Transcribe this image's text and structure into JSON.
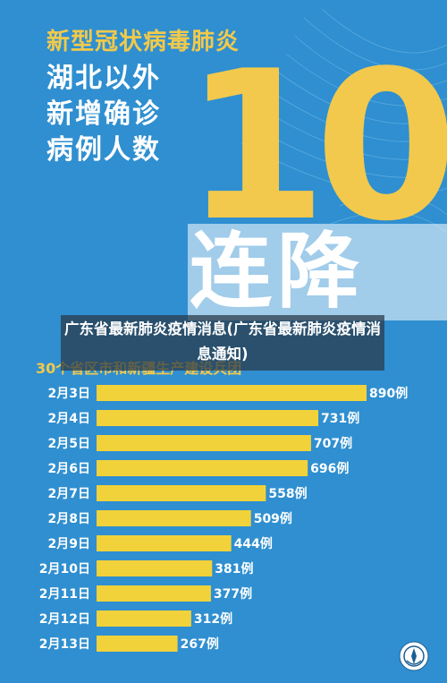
{
  "poster": {
    "headline_top": "新型冠状病毒肺炎",
    "headline_lines": [
      "湖北以外",
      "新增确诊",
      "病例人数"
    ],
    "big_number": "10",
    "streak_label": "连降",
    "overlay_title": "广东省最新肺炎疫情消息(广东省最新肺炎疫情消息通知)",
    "subtitle": "30个省区市和新疆生产建设兵团",
    "colors": {
      "background": "#2f8fd0",
      "accent_yellow": "#f2c94c",
      "bar": "#f2d23a"
    }
  },
  "chart_data": {
    "type": "bar",
    "orientation": "horizontal",
    "title": "",
    "xlabel": "",
    "ylabel": "",
    "categories": [
      "2月3日",
      "2月4日",
      "2月5日",
      "2月6日",
      "2月7日",
      "2月8日",
      "2月9日",
      "2月10日",
      "2月11日",
      "2月12日",
      "2月13日"
    ],
    "values": [
      890,
      731,
      707,
      696,
      558,
      509,
      444,
      381,
      377,
      312,
      267
    ],
    "value_labels": [
      "890例",
      "731例",
      "707例",
      "696例",
      "558例",
      "509例",
      "444例",
      "381例",
      "377例",
      "312例",
      "267例"
    ],
    "xlim": [
      0,
      890
    ],
    "grid": false,
    "legend": "none"
  }
}
